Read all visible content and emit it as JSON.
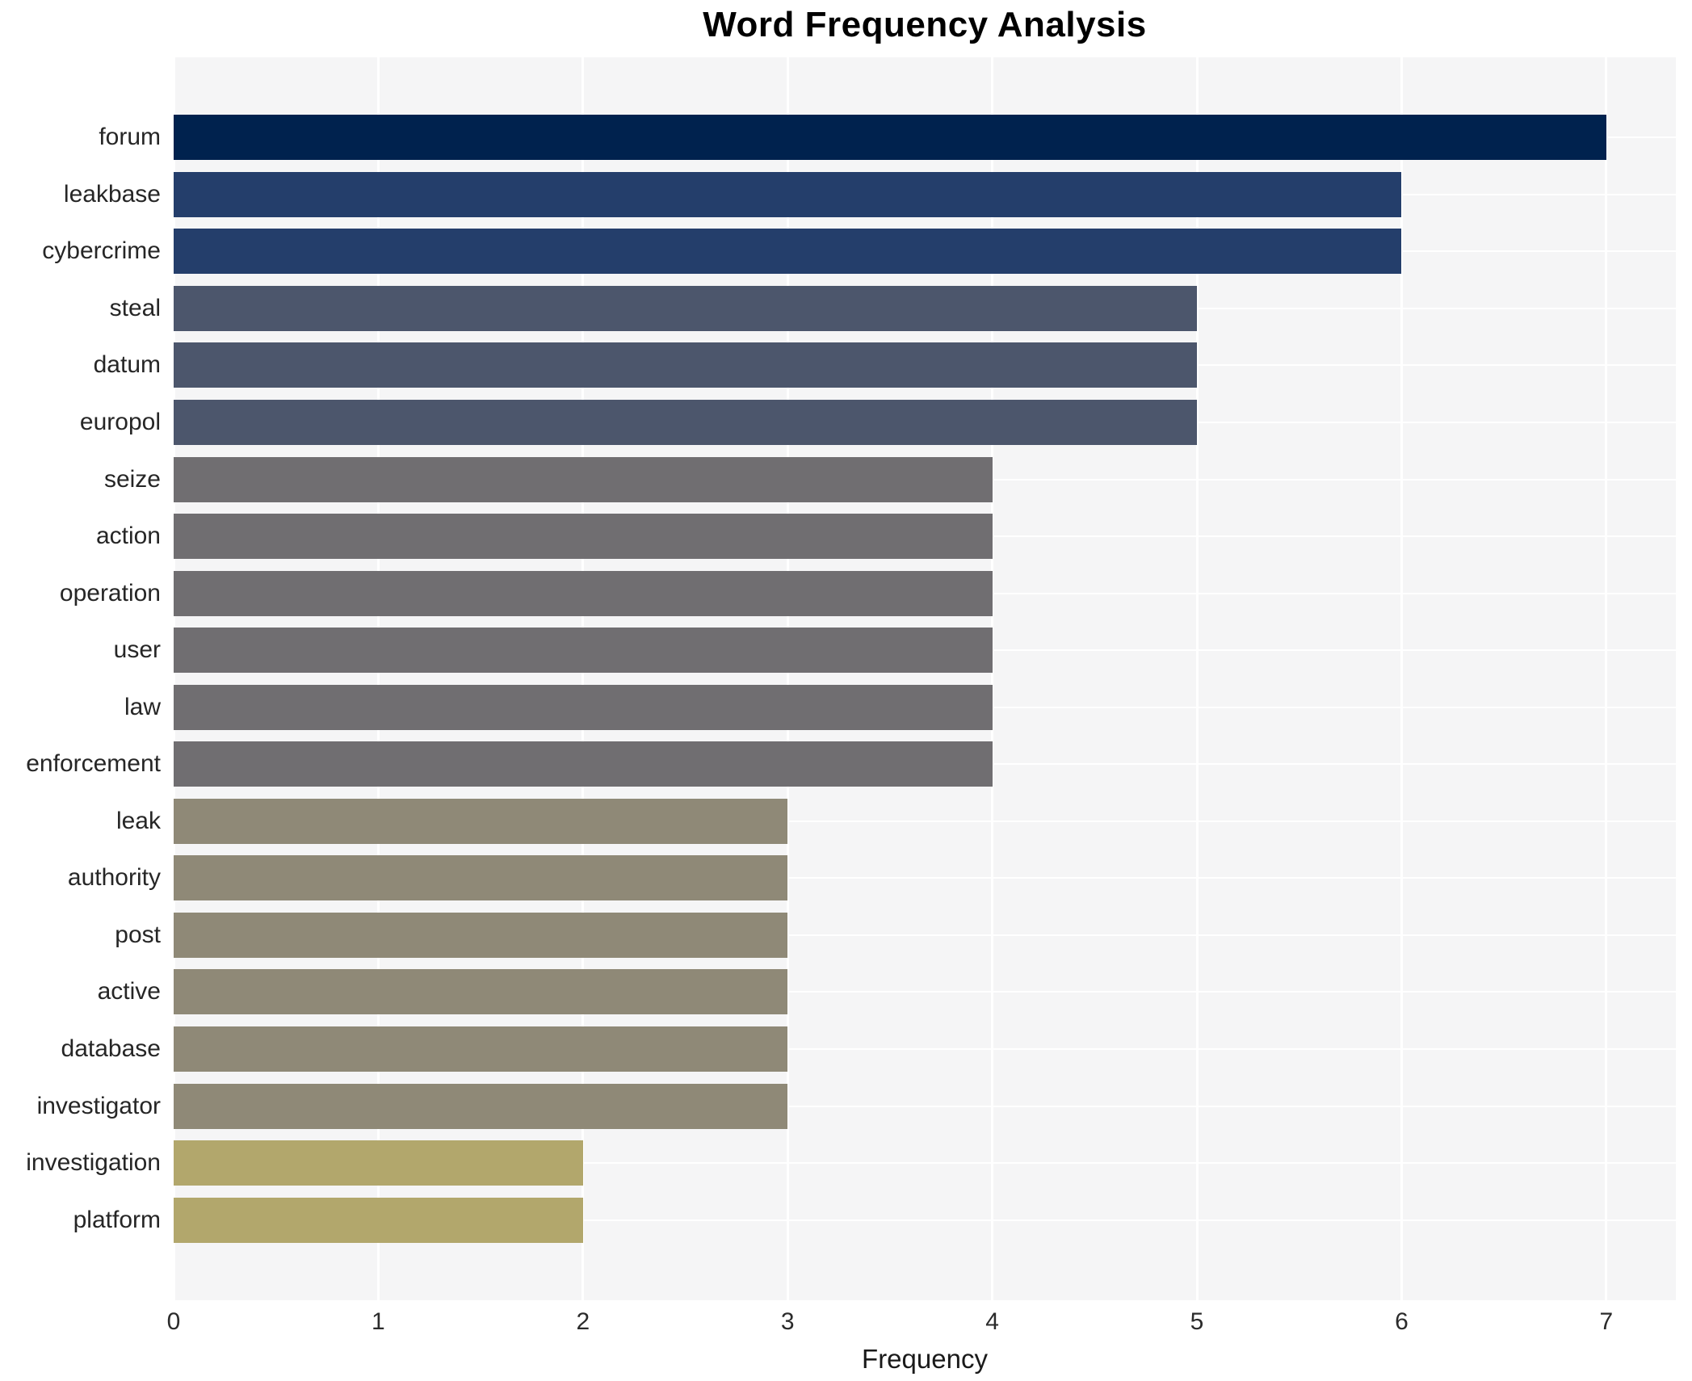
{
  "title": "Word Frequency Analysis",
  "chart_data": {
    "type": "bar",
    "orientation": "horizontal",
    "title": "Word Frequency Analysis",
    "xlabel": "Frequency",
    "ylabel": "",
    "categories": [
      "forum",
      "leakbase",
      "cybercrime",
      "steal",
      "datum",
      "europol",
      "seize",
      "action",
      "operation",
      "user",
      "law",
      "enforcement",
      "leak",
      "authority",
      "post",
      "active",
      "database",
      "investigator",
      "investigation",
      "platform"
    ],
    "values": [
      7,
      6,
      6,
      5,
      5,
      5,
      4,
      4,
      4,
      4,
      4,
      4,
      3,
      3,
      3,
      3,
      3,
      3,
      2,
      2
    ],
    "xlim": [
      0,
      7.34
    ],
    "xticks": [
      0,
      1,
      2,
      3,
      4,
      5,
      6,
      7
    ],
    "legend": "none",
    "grid": "white gridlines on light gray plot background",
    "plot_bg_color": "#f5f5f6",
    "grid_color": "#ffffff",
    "color_by_value": {
      "7": "#00224e",
      "6": "#243e6b",
      "5": "#4c566c",
      "4": "#706e71",
      "3": "#8f8977",
      "2": "#b2a76c"
    }
  }
}
